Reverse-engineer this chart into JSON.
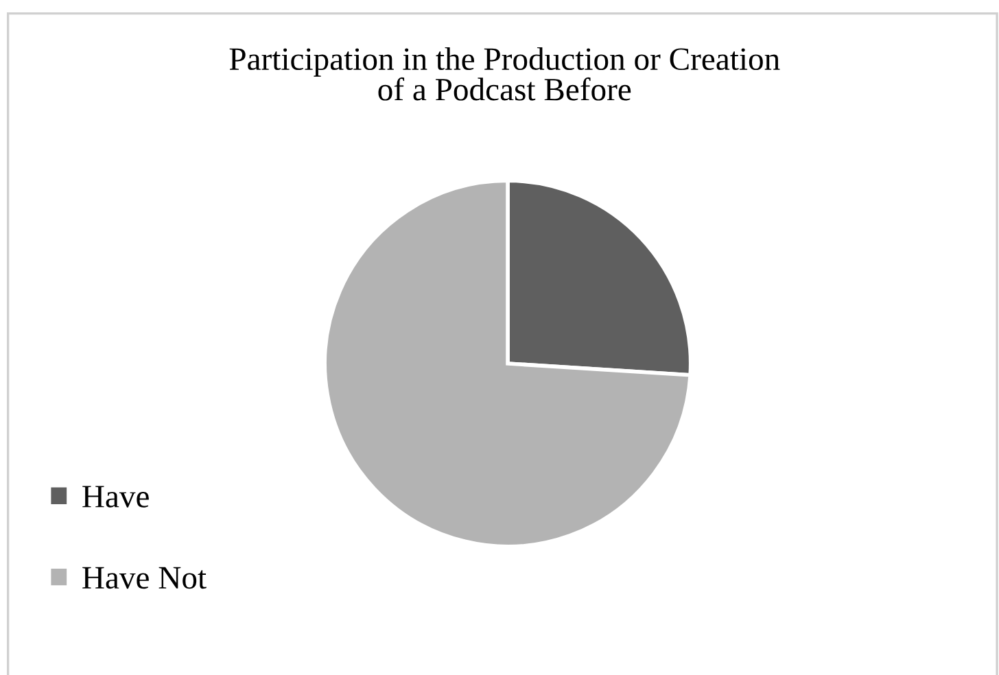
{
  "chart_data": {
    "type": "pie",
    "title": "Participation in the Production or Creation\nof a Podcast Before",
    "categories": [
      "Have",
      "Have Not"
    ],
    "values": [
      26,
      74
    ],
    "colors": [
      "#5f5f5f",
      "#b3b3b3"
    ],
    "legend": "left"
  }
}
